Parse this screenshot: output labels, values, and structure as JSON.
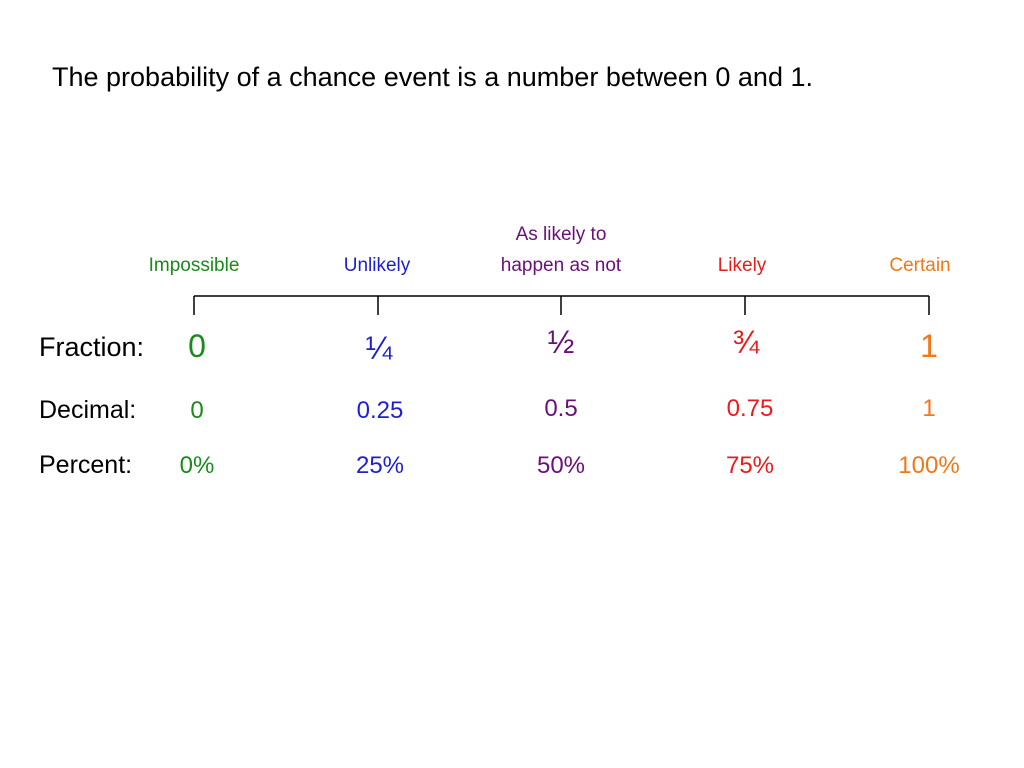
{
  "title": "The probability of a chance event is a number between 0 and 1.",
  "scale": {
    "labels": [
      {
        "text": "Impossible",
        "color": "#1a8a1a"
      },
      {
        "text": "Unlikely",
        "color": "#1f1fd0"
      },
      {
        "text_line1": "As likely to",
        "text_line2": "happen as not",
        "color": "#6b0f7a"
      },
      {
        "text": "Likely",
        "color": "#e81c1c"
      },
      {
        "text": "Certain",
        "color": "#f07818"
      }
    ],
    "line_color": "#000000"
  },
  "rows": {
    "fraction": {
      "label": "Fraction:",
      "values": [
        "0",
        "¼",
        "½",
        "¾",
        "1"
      ]
    },
    "decimal": {
      "label": "Decimal:",
      "values": [
        "0",
        "0.25",
        "0.5",
        "0.75",
        "1"
      ]
    },
    "percent": {
      "label": "Percent:",
      "values": [
        "0%",
        "25%",
        "50%",
        "75%",
        "100%"
      ]
    }
  }
}
